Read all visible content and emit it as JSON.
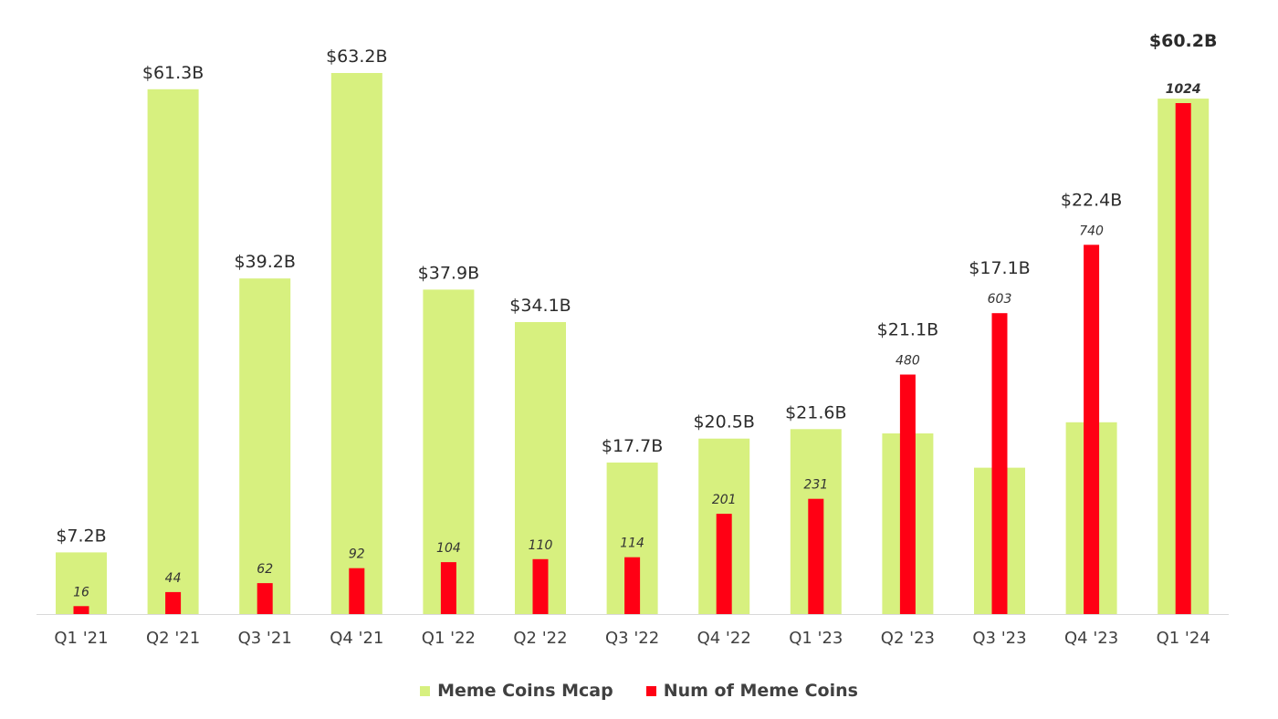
{
  "colors": {
    "mcap": "#d7f07f",
    "count": "#ff0014",
    "axis": "#d9d9d9"
  },
  "legend": {
    "mcap_label": "Meme Coins Mcap",
    "count_label": "Num of Meme Coins"
  },
  "chart_data": {
    "type": "bar",
    "categories": [
      "Q1 '21",
      "Q2 '21",
      "Q3 '21",
      "Q4 '21",
      "Q1 '22",
      "Q2 '22",
      "Q3 '22",
      "Q4 '22",
      "Q1 '23",
      "Q2 '23",
      "Q3 '23",
      "Q4 '23",
      "Q1 '24"
    ],
    "series": [
      {
        "name": "Meme Coins Mcap",
        "unit": "USD billions",
        "values": [
          7.2,
          61.3,
          39.2,
          63.2,
          37.9,
          34.1,
          17.7,
          20.5,
          21.6,
          21.1,
          17.1,
          22.4,
          60.2
        ],
        "labels": [
          "$7.2B",
          "$61.3B",
          "$39.2B",
          "$63.2B",
          "$37.9B",
          "$34.1B",
          "$17.7B",
          "$20.5B",
          "$21.6B",
          "$21.1B",
          "$17.1B",
          "$22.4B",
          "$60.2B"
        ]
      },
      {
        "name": "Num of Meme Coins",
        "values": [
          16,
          44,
          62,
          92,
          104,
          110,
          114,
          201,
          231,
          480,
          603,
          740,
          1024
        ],
        "labels": [
          "16",
          "44",
          "62",
          "92",
          "104",
          "110",
          "114",
          "201",
          "231",
          "480",
          "603",
          "740",
          "1024"
        ]
      }
    ],
    "xlabel": "",
    "ylabel": "",
    "legend_position": "bottom",
    "grid": false
  }
}
